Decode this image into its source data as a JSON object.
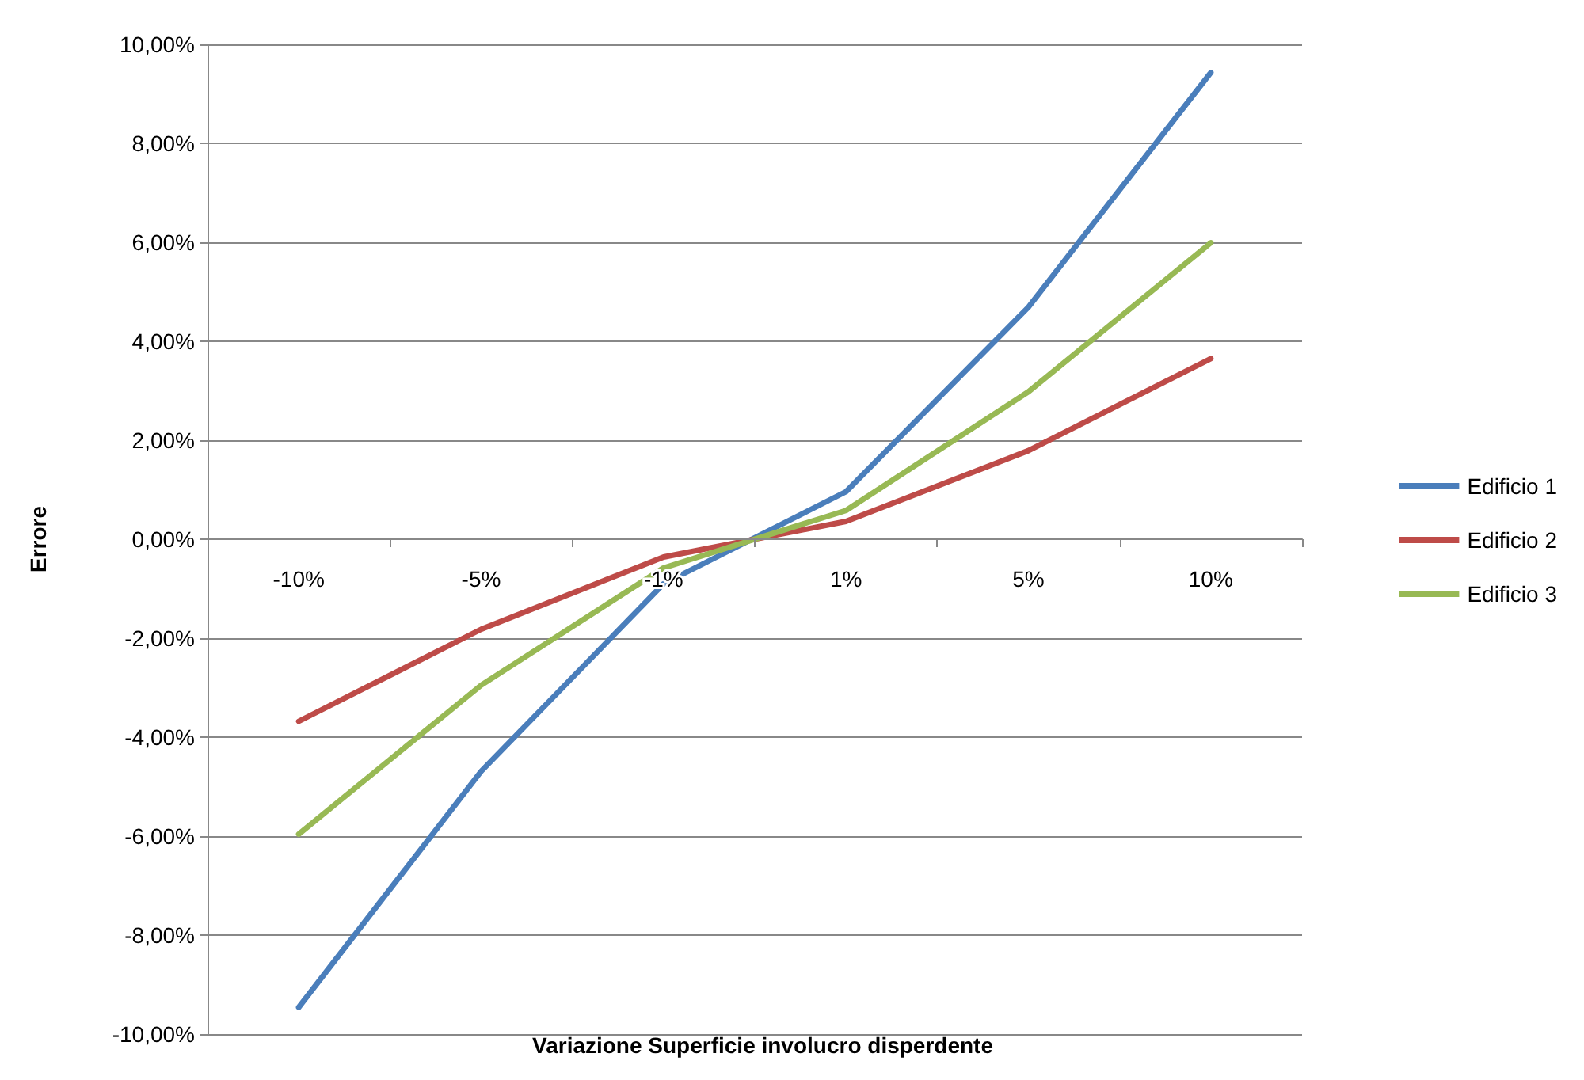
{
  "chart_data": {
    "type": "line",
    "xlabel": "Variazione Superficie involucro disperdente",
    "ylabel": "Errore",
    "categories": [
      "-10%",
      "-5%",
      "-1%",
      "1%",
      "5%",
      "10%"
    ],
    "series": [
      {
        "name": "Edificio 1",
        "color": "#4a7ebb",
        "values": [
          -9.46,
          -4.69,
          -0.9,
          0.96,
          4.69,
          9.43
        ]
      },
      {
        "name": "Edificio 2",
        "color": "#be4b48",
        "values": [
          -3.68,
          -1.82,
          -0.36,
          0.36,
          1.79,
          3.65
        ]
      },
      {
        "name": "Edificio 3",
        "color": "#98b954",
        "values": [
          -5.96,
          -2.95,
          -0.58,
          0.58,
          2.98,
          5.99
        ]
      }
    ],
    "ylim": [
      -10,
      10
    ],
    "yticks": [
      {
        "value": -10,
        "label": "-10,00%"
      },
      {
        "value": -8,
        "label": "-8,00%"
      },
      {
        "value": -6,
        "label": "-6,00%"
      },
      {
        "value": -4,
        "label": "-4,00%"
      },
      {
        "value": -2,
        "label": "-2,00%"
      },
      {
        "value": 0,
        "label": "0,00%"
      },
      {
        "value": 2,
        "label": "2,00%"
      },
      {
        "value": 4,
        "label": "4,00%"
      },
      {
        "value": 6,
        "label": "6,00%"
      },
      {
        "value": 8,
        "label": "8,00%"
      },
      {
        "value": 10,
        "label": "10,00%"
      }
    ],
    "grid": "y",
    "legend": "right",
    "marker": "none",
    "line_style": "solid"
  }
}
